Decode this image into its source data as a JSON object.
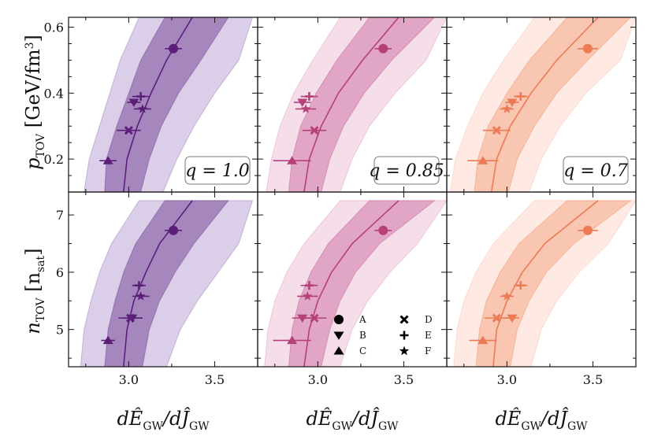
{
  "chart_data": {
    "type": "scatter",
    "layout": "2x3 grid of panels sharing axes",
    "xlabel": "dÊ_GW/dĴ_GW",
    "ylabels": [
      "p_TOV [GeV/fm³]",
      "n_TOV [n_sat]"
    ],
    "xlim": [
      2.65,
      3.75
    ],
    "ylim_top": [
      0.1,
      0.63
    ],
    "ylim_bottom": [
      4.35,
      7.4
    ],
    "xticks": [
      "3.0",
      "3.5"
    ],
    "yticks_top": [
      "0.2",
      "0.4",
      "0.6"
    ],
    "yticks_bottom": [
      "5",
      "6",
      "7"
    ],
    "grid": false,
    "legend_position": "bottom-middle panel, right",
    "legend": {
      "A": "circle",
      "B": "triangle-down",
      "C": "triangle-up",
      "D": "x",
      "E": "plus",
      "F": "star"
    },
    "panels": [
      {
        "q_label": "q = 1.0",
        "color": "#5b1f7a",
        "band_inner_color": "#8f6aab",
        "band_outer_color": "#cdbde0",
        "band_pressure": {
          "y": [
            0.1,
            0.2,
            0.3,
            0.4,
            0.5,
            0.63
          ],
          "center": [
            2.97,
            2.99,
            3.05,
            3.13,
            3.22,
            3.37
          ],
          "inner_lo": [
            2.86,
            2.87,
            2.93,
            3.0,
            3.07,
            3.21
          ],
          "inner_hi": [
            3.07,
            3.12,
            3.19,
            3.29,
            3.42,
            3.58
          ],
          "outer_lo": [
            2.74,
            2.77,
            2.83,
            2.89,
            2.95,
            3.06
          ],
          "outer_hi": [
            3.2,
            3.28,
            3.38,
            3.5,
            3.64,
            3.72
          ]
        },
        "band_density": {
          "y": [
            4.35,
            5.0,
            5.5,
            6.0,
            6.5,
            7.25
          ],
          "center": [
            2.97,
            2.99,
            3.03,
            3.1,
            3.18,
            3.37
          ],
          "inner_lo": [
            2.86,
            2.88,
            2.92,
            2.97,
            3.04,
            3.21
          ],
          "inner_hi": [
            3.08,
            3.12,
            3.18,
            3.27,
            3.38,
            3.58
          ],
          "outer_lo": [
            2.72,
            2.74,
            2.78,
            2.83,
            2.9,
            3.06
          ],
          "outer_hi": [
            3.22,
            3.3,
            3.4,
            3.52,
            3.64,
            3.72
          ]
        },
        "points_pressure": [
          {
            "label": "A",
            "x": 3.26,
            "y": 0.535,
            "xerr": 0.05
          },
          {
            "label": "B",
            "x": 3.03,
            "y": 0.372,
            "xerr": 0.04
          },
          {
            "label": "E",
            "x": 3.07,
            "y": 0.39,
            "xerr": 0.05
          },
          {
            "label": "F",
            "x": 3.08,
            "y": 0.352,
            "xerr": 0.05
          },
          {
            "label": "D",
            "x": 3.0,
            "y": 0.287,
            "xerr": 0.07
          },
          {
            "label": "C",
            "x": 2.88,
            "y": 0.195,
            "xerr": 0.05
          }
        ],
        "points_density": [
          {
            "label": "A",
            "x": 3.26,
            "y": 6.73,
            "xerr": 0.05
          },
          {
            "label": "E",
            "x": 3.06,
            "y": 5.77,
            "xerr": 0.04
          },
          {
            "label": "F",
            "x": 3.07,
            "y": 5.58,
            "xerr": 0.05
          },
          {
            "label": "B",
            "x": 3.02,
            "y": 5.2,
            "xerr": 0.06
          },
          {
            "label": "D",
            "x": 3.01,
            "y": 5.2,
            "xerr": 0.07
          },
          {
            "label": "C",
            "x": 2.88,
            "y": 4.81,
            "xerr": 0.04
          }
        ]
      },
      {
        "q_label": "q = 0.85",
        "color": "#b5407a",
        "band_inner_color": "#d98fb5",
        "band_outer_color": "#f1d3e3",
        "band_pressure": {
          "y": [
            0.1,
            0.2,
            0.3,
            0.4,
            0.5,
            0.63
          ],
          "center": [
            2.92,
            2.95,
            3.02,
            3.12,
            3.26,
            3.47
          ],
          "inner_lo": [
            2.83,
            2.85,
            2.9,
            2.99,
            3.11,
            3.3
          ],
          "inner_hi": [
            3.02,
            3.07,
            3.15,
            3.27,
            3.43,
            3.68
          ],
          "outer_lo": [
            2.7,
            2.73,
            2.78,
            2.86,
            2.97,
            3.13
          ],
          "outer_hi": [
            3.13,
            3.2,
            3.3,
            3.45,
            3.63,
            3.75
          ]
        },
        "band_density": {
          "y": [
            4.35,
            5.0,
            5.5,
            6.0,
            6.5,
            7.25
          ],
          "center": [
            2.92,
            2.95,
            3.0,
            3.08,
            3.2,
            3.47
          ],
          "inner_lo": [
            2.83,
            2.85,
            2.89,
            2.96,
            3.06,
            3.3
          ],
          "inner_hi": [
            3.02,
            3.07,
            3.13,
            3.22,
            3.36,
            3.68
          ],
          "outer_lo": [
            2.69,
            2.71,
            2.75,
            2.82,
            2.92,
            3.13
          ],
          "outer_hi": [
            3.13,
            3.2,
            3.29,
            3.42,
            3.58,
            3.75
          ]
        },
        "points_pressure": [
          {
            "label": "A",
            "x": 3.38,
            "y": 0.535,
            "xerr": 0.05
          },
          {
            "label": "E",
            "x": 2.95,
            "y": 0.39,
            "xerr": 0.05
          },
          {
            "label": "B",
            "x": 2.91,
            "y": 0.372,
            "xerr": 0.05
          },
          {
            "label": "F",
            "x": 2.93,
            "y": 0.352,
            "xerr": 0.06
          },
          {
            "label": "D",
            "x": 2.98,
            "y": 0.287,
            "xerr": 0.07
          },
          {
            "label": "C",
            "x": 2.85,
            "y": 0.195,
            "xerr": 0.11
          }
        ],
        "points_density": [
          {
            "label": "A",
            "x": 3.38,
            "y": 6.73,
            "xerr": 0.05
          },
          {
            "label": "E",
            "x": 2.95,
            "y": 5.77,
            "xerr": 0.05
          },
          {
            "label": "F",
            "x": 2.94,
            "y": 5.58,
            "xerr": 0.06
          },
          {
            "label": "B",
            "x": 2.91,
            "y": 5.2,
            "xerr": 0.06
          },
          {
            "label": "D",
            "x": 2.98,
            "y": 5.2,
            "xerr": 0.07
          },
          {
            "label": "C",
            "x": 2.85,
            "y": 4.81,
            "xerr": 0.11
          }
        ]
      },
      {
        "q_label": "q = 0.7",
        "color": "#ec7a55",
        "band_inner_color": "#f6b79d",
        "band_outer_color": "#fde3d8",
        "band_pressure": {
          "y": [
            0.1,
            0.2,
            0.3,
            0.4,
            0.5,
            0.63
          ],
          "center": [
            2.91,
            2.94,
            3.02,
            3.14,
            3.29,
            3.53
          ],
          "inner_lo": [
            2.81,
            2.83,
            2.89,
            3.0,
            3.13,
            3.35
          ],
          "inner_hi": [
            3.01,
            3.06,
            3.16,
            3.29,
            3.47,
            3.72
          ],
          "outer_lo": [
            2.67,
            2.7,
            2.77,
            2.86,
            2.98,
            3.16
          ],
          "outer_hi": [
            3.13,
            3.2,
            3.31,
            3.46,
            3.66,
            3.75
          ]
        },
        "band_density": {
          "y": [
            4.35,
            5.0,
            5.5,
            6.0,
            6.5,
            7.25
          ],
          "center": [
            2.92,
            2.94,
            3.0,
            3.09,
            3.22,
            3.53
          ],
          "inner_lo": [
            2.82,
            2.84,
            2.88,
            2.96,
            3.07,
            3.35
          ],
          "inner_hi": [
            3.02,
            3.06,
            3.13,
            3.23,
            3.39,
            3.72
          ],
          "outer_lo": [
            2.69,
            2.71,
            2.75,
            2.82,
            2.92,
            3.16
          ],
          "outer_hi": [
            3.14,
            3.2,
            3.29,
            3.42,
            3.59,
            3.75
          ]
        },
        "points_pressure": [
          {
            "label": "A",
            "x": 3.47,
            "y": 0.535,
            "xerr": 0.06
          },
          {
            "label": "E",
            "x": 3.08,
            "y": 0.39,
            "xerr": 0.04
          },
          {
            "label": "B",
            "x": 3.03,
            "y": 0.372,
            "xerr": 0.04
          },
          {
            "label": "F",
            "x": 3.0,
            "y": 0.352,
            "xerr": 0.04
          },
          {
            "label": "D",
            "x": 2.94,
            "y": 0.287,
            "xerr": 0.08
          },
          {
            "label": "C",
            "x": 2.86,
            "y": 0.195,
            "xerr": 0.09
          }
        ],
        "points_density": [
          {
            "label": "A",
            "x": 3.47,
            "y": 6.73,
            "xerr": 0.06
          },
          {
            "label": "E",
            "x": 3.08,
            "y": 5.77,
            "xerr": 0.04
          },
          {
            "label": "F",
            "x": 3.0,
            "y": 5.58,
            "xerr": 0.04
          },
          {
            "label": "B",
            "x": 3.03,
            "y": 5.2,
            "xerr": 0.04
          },
          {
            "label": "D",
            "x": 2.94,
            "y": 5.2,
            "xerr": 0.07
          },
          {
            "label": "C",
            "x": 2.86,
            "y": 4.81,
            "xerr": 0.08
          }
        ]
      }
    ]
  }
}
